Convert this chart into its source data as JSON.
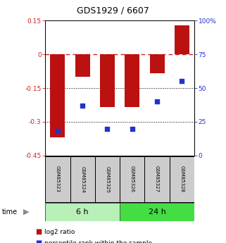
{
  "title": "GDS1929 / 6607",
  "samples": [
    "GSM85323",
    "GSM85324",
    "GSM85325",
    "GSM85326",
    "GSM85327",
    "GSM85328"
  ],
  "log2_ratio": [
    -0.37,
    -0.1,
    -0.235,
    -0.235,
    -0.085,
    0.13
  ],
  "percentile": [
    18,
    37,
    20,
    20,
    40,
    55
  ],
  "groups": [
    {
      "label": "6 h",
      "indices": [
        0,
        1,
        2
      ],
      "color": "#b8f0b8"
    },
    {
      "label": "24 h",
      "indices": [
        3,
        4,
        5
      ],
      "color": "#44dd44"
    }
  ],
  "left_ylim": [
    -0.45,
    0.15
  ],
  "left_yticks": [
    0.15,
    0,
    -0.15,
    -0.3,
    -0.45
  ],
  "left_yticklabels": [
    "0.15",
    "0",
    "-0.15",
    "-0.3",
    "-0.45"
  ],
  "right_ylim": [
    0,
    100
  ],
  "right_yticks": [
    100,
    75,
    50,
    25,
    0
  ],
  "right_yticklabels": [
    "100%",
    "75",
    "50",
    "25",
    "0"
  ],
  "bar_color": "#bb1111",
  "dot_color": "#2233cc",
  "bar_width": 0.6,
  "dot_size": 25,
  "hline_zero_color": "#cc2222",
  "hline_dotted_values": [
    -0.15,
    -0.3
  ],
  "legend_log2_label": "log2 ratio",
  "legend_pct_label": "percentile rank within the sample",
  "time_label": "time",
  "background_color": "#ffffff",
  "left_tick_color": "#cc2222",
  "right_tick_color": "#2233cc",
  "sample_box_color": "#cccccc",
  "title_fontsize": 9,
  "tick_fontsize": 6.5,
  "sample_fontsize": 5.0,
  "group_fontsize": 8,
  "legend_fontsize": 6.5
}
